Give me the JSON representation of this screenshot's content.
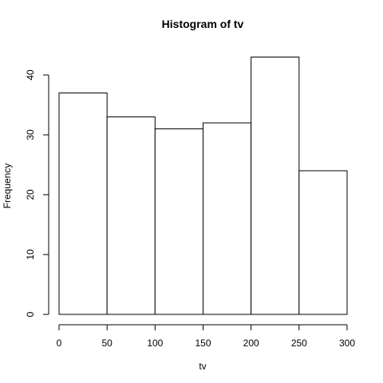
{
  "chart_data": {
    "type": "bar",
    "title": "Histogram of tv",
    "xlabel": "tv",
    "ylabel": "Frequency",
    "bins": [
      {
        "x0": 0,
        "x1": 50,
        "count": 37
      },
      {
        "x0": 50,
        "x1": 100,
        "count": 33
      },
      {
        "x0": 100,
        "x1": 150,
        "count": 31
      },
      {
        "x0": 150,
        "x1": 200,
        "count": 32
      },
      {
        "x0": 200,
        "x1": 250,
        "count": 43
      },
      {
        "x0": 250,
        "x1": 300,
        "count": 24
      }
    ],
    "xlim": [
      0,
      300
    ],
    "ylim": [
      0,
      40
    ],
    "xticks": [
      "0",
      "50",
      "100",
      "150",
      "200",
      "250",
      "300"
    ],
    "yticks": [
      "0",
      "10",
      "20",
      "30",
      "40"
    ],
    "grid": false,
    "colors": {
      "bar_fill": "#ffffff",
      "bar_stroke": "#000000"
    }
  }
}
